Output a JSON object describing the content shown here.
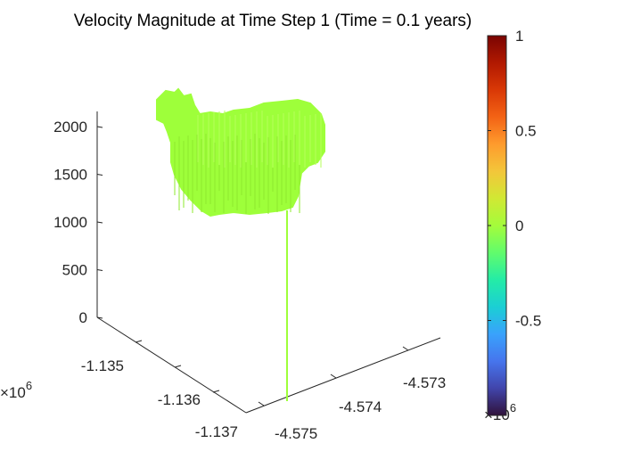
{
  "chart_data": {
    "type": "surface",
    "title": "Velocity Magnitude at Time Step 1 (Time = 0.1 years)",
    "xlabel": "",
    "ylabel": "",
    "zlabel": "",
    "x_ticks": [
      "-4.575",
      "-4.574",
      "-4.573"
    ],
    "y_ticks": [
      "-1.137",
      "-1.136",
      "-1.135"
    ],
    "z_ticks": [
      "0",
      "500",
      "1000",
      "1500",
      "2000"
    ],
    "x_exponent": "6",
    "y_exponent": "6",
    "x_exponent_base": "×10",
    "y_exponent_base": "×10",
    "zlim": [
      0,
      2200
    ],
    "surface_color": "#9eff3a",
    "surface_value": 0,
    "surface_z_range": [
      1060,
      2200
    ],
    "colorbar": {
      "colormap": "turbo",
      "clim": [
        -1,
        1
      ],
      "ticks": [
        "-0.5",
        "0",
        "0.5",
        "1"
      ],
      "colors": [
        "#30123b",
        "#4145ab",
        "#4675ed",
        "#39a2fc",
        "#1bcfd4",
        "#24eca6",
        "#61fc6c",
        "#a4fc3b",
        "#d1e834",
        "#f3c63a",
        "#fe9b2d",
        "#f36315",
        "#d93806",
        "#b11901",
        "#7a0402"
      ]
    }
  }
}
